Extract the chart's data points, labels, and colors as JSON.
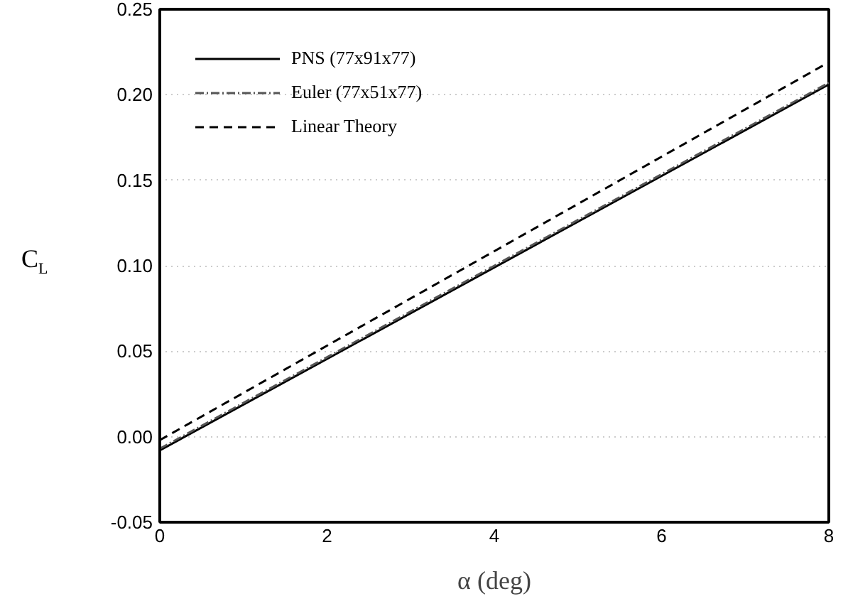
{
  "chart_data": {
    "type": "line",
    "xlabel": "α (deg)",
    "ylabel": "C$_{L}$",
    "x": [
      0,
      8
    ],
    "series": [
      {
        "name": "PNS (77x91x77)",
        "color": "#000000",
        "values": [
          -0.008,
          0.206
        ],
        "line_style": "solid"
      },
      {
        "name": "Euler (77x51x77)",
        "color": "#555555",
        "values": [
          -0.007,
          0.207
        ],
        "line_style": "dashdot"
      },
      {
        "name": "Linear Theory",
        "color": "#000000",
        "values": [
          -0.002,
          0.219
        ],
        "line_style": "dashed"
      }
    ],
    "xlim": [
      0,
      8
    ],
    "xticks": [
      0,
      2,
      4,
      6,
      8
    ],
    "ylim": [
      -0.05,
      0.25
    ],
    "yticks": [
      {
        "value": -0.05,
        "label": "-0.05"
      },
      {
        "value": 0,
        "label": "0.00"
      },
      {
        "value": 0.05,
        "label": "0.05"
      },
      {
        "value": 0.1,
        "label": "0.10"
      },
      {
        "value": 0.15,
        "label": "0.15"
      },
      {
        "value": 0.2,
        "label": "0.20"
      },
      {
        "value": 0.25,
        "label": "0.25"
      }
    ],
    "grid": "y",
    "legend": "top left",
    "marker": "none"
  }
}
